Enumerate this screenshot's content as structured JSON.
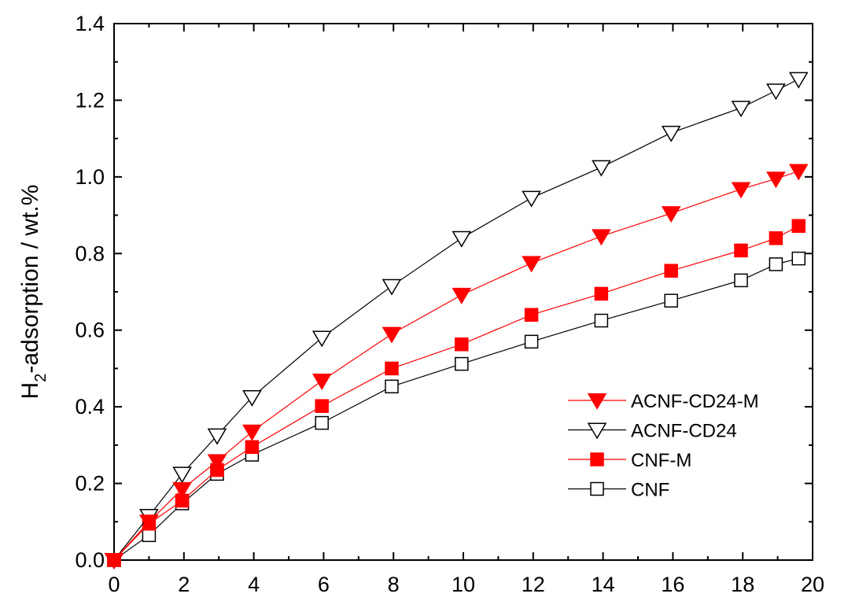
{
  "chart_data": {
    "type": "line",
    "title": "",
    "xlabel": "",
    "ylabel": "H₂-adsorption / wt.%",
    "ylabel_main": "H",
    "ylabel_sub": "2",
    "ylabel_rest": "-adsorption / wt.%",
    "xlim": [
      0,
      20
    ],
    "ylim": [
      0,
      1.4
    ],
    "x_ticks": [
      "0",
      "2",
      "4",
      "6",
      "8",
      "10",
      "12",
      "14",
      "16",
      "18",
      "20"
    ],
    "y_ticks": [
      "0.0",
      "0.2",
      "0.4",
      "0.6",
      "0.8",
      "1.0",
      "1.2",
      "1.4"
    ],
    "grid": false,
    "legend_position": "right-middle",
    "series": [
      {
        "name": "ACNF-CD24-M",
        "marker": "triangle-down-filled",
        "color": "#ff0000",
        "x": [
          0,
          1,
          1.95,
          2.95,
          3.95,
          5.95,
          7.95,
          9.95,
          11.95,
          13.95,
          15.95,
          17.95,
          18.95,
          19.6
        ],
        "y": [
          0,
          0.1,
          0.185,
          0.258,
          0.335,
          0.468,
          0.59,
          0.692,
          0.775,
          0.845,
          0.905,
          0.968,
          0.995,
          1.015
        ]
      },
      {
        "name": "ACNF-CD24",
        "marker": "triangle-down-open",
        "color": "#000000",
        "x": [
          0,
          1,
          1.95,
          2.95,
          3.95,
          5.95,
          7.95,
          9.95,
          11.95,
          13.95,
          15.95,
          17.95,
          18.95,
          19.6
        ],
        "y": [
          0,
          0.115,
          0.225,
          0.325,
          0.425,
          0.58,
          0.715,
          0.84,
          0.945,
          1.025,
          1.115,
          1.18,
          1.225,
          1.255
        ]
      },
      {
        "name": "CNF-M",
        "marker": "square-filled",
        "color": "#ff0000",
        "x": [
          0,
          1,
          1.95,
          2.95,
          3.95,
          5.95,
          7.95,
          9.95,
          11.95,
          13.95,
          15.95,
          17.95,
          18.95,
          19.6
        ],
        "y": [
          0,
          0.095,
          0.155,
          0.235,
          0.295,
          0.402,
          0.5,
          0.563,
          0.64,
          0.695,
          0.755,
          0.808,
          0.84,
          0.872
        ]
      },
      {
        "name": "CNF",
        "marker": "square-open",
        "color": "#000000",
        "x": [
          0,
          1,
          1.95,
          2.95,
          3.95,
          5.95,
          7.95,
          9.95,
          11.95,
          13.95,
          15.95,
          17.95,
          18.95,
          19.6
        ],
        "y": [
          0,
          0.065,
          0.148,
          0.225,
          0.275,
          0.358,
          0.453,
          0.512,
          0.57,
          0.625,
          0.677,
          0.73,
          0.772,
          0.787
        ]
      }
    ]
  }
}
